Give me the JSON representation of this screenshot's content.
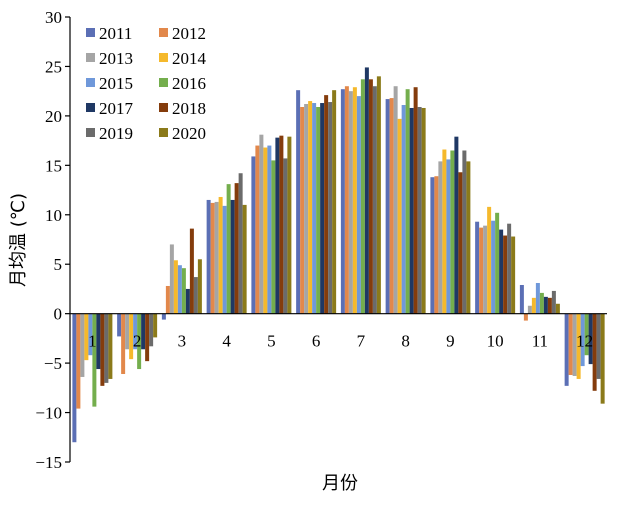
{
  "chart_data": {
    "type": "bar",
    "xlabel": "月份",
    "ylabel": "月均温 (℃)",
    "ylim": [
      -15,
      30
    ],
    "yticks": [
      -15,
      -10,
      -5,
      0,
      5,
      10,
      15,
      20,
      25,
      30
    ],
    "ytick_labels": [
      "−15",
      "−10",
      "−5",
      "0",
      "5",
      "10",
      "15",
      "20",
      "25",
      "30"
    ],
    "grid": false,
    "legend_position": "top-left",
    "categories": [
      "1",
      "2",
      "3",
      "4",
      "5",
      "6",
      "7",
      "8",
      "9",
      "10",
      "11",
      "12"
    ],
    "series": [
      {
        "name": "2011",
        "color": "#5B6FB5",
        "values": [
          -13.0,
          -2.3,
          -0.6,
          11.5,
          15.9,
          22.6,
          22.7,
          21.7,
          13.8,
          9.3,
          2.9,
          -7.3
        ]
      },
      {
        "name": "2012",
        "color": "#E2884B",
        "values": [
          -9.6,
          -6.1,
          2.8,
          11.2,
          17.0,
          20.9,
          23.0,
          21.8,
          13.9,
          8.7,
          -0.7,
          -6.2
        ]
      },
      {
        "name": "2013",
        "color": "#A5A5A5",
        "values": [
          -6.4,
          -3.6,
          7.0,
          11.3,
          18.1,
          21.2,
          22.5,
          23.0,
          15.4,
          8.9,
          0.8,
          -6.3
        ]
      },
      {
        "name": "2014",
        "color": "#F5B92C",
        "values": [
          -4.7,
          -4.6,
          5.4,
          11.8,
          16.8,
          21.5,
          22.9,
          19.7,
          16.6,
          10.8,
          1.6,
          -6.6
        ]
      },
      {
        "name": "2015",
        "color": "#6F98DA",
        "values": [
          -4.2,
          -3.6,
          4.9,
          10.9,
          17.0,
          21.3,
          22.0,
          21.1,
          15.6,
          9.4,
          3.1,
          -5.3
        ]
      },
      {
        "name": "2016",
        "color": "#74AE4D",
        "values": [
          -9.4,
          -5.6,
          4.6,
          13.1,
          15.5,
          20.9,
          23.7,
          22.7,
          16.5,
          10.2,
          2.1,
          -4.2
        ]
      },
      {
        "name": "2017",
        "color": "#1F3864",
        "values": [
          -5.6,
          -3.6,
          2.5,
          11.5,
          17.8,
          21.3,
          24.9,
          20.8,
          17.9,
          8.5,
          1.7,
          -5.1
        ]
      },
      {
        "name": "2018",
        "color": "#843C0C",
        "values": [
          -7.3,
          -4.8,
          8.6,
          13.2,
          18.0,
          22.1,
          23.7,
          22.9,
          14.3,
          7.9,
          1.6,
          -7.8
        ]
      },
      {
        "name": "2019",
        "color": "#6B6B6B",
        "values": [
          -7.0,
          -3.3,
          3.7,
          14.2,
          15.7,
          21.4,
          23.0,
          20.9,
          16.5,
          9.1,
          2.3,
          -6.6
        ]
      },
      {
        "name": "2020",
        "color": "#8B7A1A",
        "values": [
          -6.6,
          -2.4,
          5.5,
          11.0,
          17.9,
          22.6,
          24.0,
          20.8,
          15.4,
          7.8,
          1.0,
          -9.1
        ]
      }
    ]
  }
}
